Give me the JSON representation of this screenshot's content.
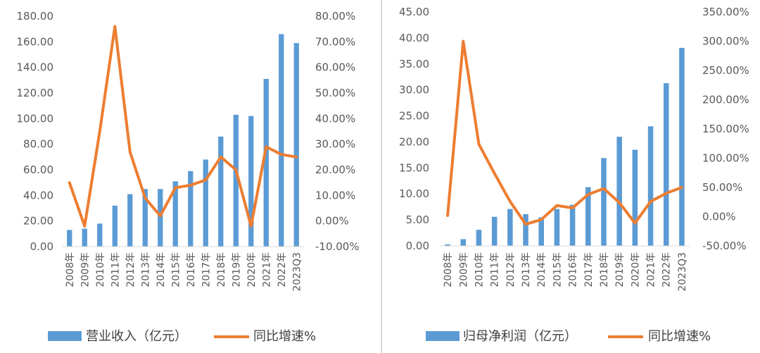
{
  "chart_data": [
    {
      "type": "bar+line",
      "categories": [
        "2008年",
        "2009年",
        "2010年",
        "2011年",
        "2012年",
        "2013年",
        "2014年",
        "2015年",
        "2016年",
        "2017年",
        "2018年",
        "2019年",
        "2020年",
        "2021年",
        "2022年",
        "2023Q3"
      ],
      "series": [
        {
          "name": "营业收入（亿元）",
          "type": "bar",
          "axis": "left",
          "values": [
            13,
            14,
            18,
            32,
            41,
            45,
            45,
            51,
            59,
            68,
            86,
            103,
            102,
            131,
            166,
            159
          ]
        },
        {
          "name": "同比增速%",
          "type": "line",
          "axis": "right",
          "values": [
            15,
            -2,
            35,
            76,
            27,
            9,
            2,
            13,
            14,
            16,
            25,
            20,
            -2,
            29,
            26,
            25
          ]
        }
      ],
      "y_left": {
        "min": 0,
        "max": 180,
        "step": 20,
        "ticks": [
          "0.00",
          "20.00",
          "40.00",
          "60.00",
          "80.00",
          "100.00",
          "120.00",
          "140.00",
          "160.00",
          "180.00"
        ]
      },
      "y_right": {
        "min": -10,
        "max": 80,
        "step": 10,
        "ticks": [
          "-10.00%",
          "0.00%",
          "10.00%",
          "20.00%",
          "30.00%",
          "40.00%",
          "50.00%",
          "60.00%",
          "70.00%",
          "80.00%"
        ]
      },
      "colors": {
        "bar": "#5B9BD5",
        "line": "#ED7D31"
      },
      "legend_position": "bottom",
      "grid": false
    },
    {
      "type": "bar+line",
      "categories": [
        "2008年",
        "2009年",
        "2010年",
        "2011年",
        "2012年",
        "2013年",
        "2014年",
        "2015年",
        "2016年",
        "2017年",
        "2018年",
        "2019年",
        "2020年",
        "2021年",
        "2022年",
        "2023Q3"
      ],
      "series": [
        {
          "name": "归母净利润（亿元）",
          "type": "bar",
          "axis": "left",
          "values": [
            0.3,
            1.3,
            3.1,
            5.6,
            7.1,
            6.1,
            5.5,
            7.1,
            7.9,
            11.3,
            16.9,
            21.0,
            18.5,
            23.0,
            31.3,
            38.1
          ]
        },
        {
          "name": "同比增速%",
          "type": "line",
          "axis": "right",
          "values": [
            2,
            300,
            124,
            74,
            26,
            -13,
            -5,
            19,
            15,
            38,
            48,
            24,
            -11,
            26,
            40,
            50
          ]
        }
      ],
      "y_left": {
        "min": 0,
        "max": 45,
        "step": 5,
        "ticks": [
          "0.00",
          "5.00",
          "10.00",
          "15.00",
          "20.00",
          "25.00",
          "30.00",
          "35.00",
          "40.00",
          "45.00"
        ]
      },
      "y_right": {
        "min": -50,
        "max": 350,
        "step": 50,
        "ticks": [
          "-50.00%",
          "0.00%",
          "50.00%",
          "100.00%",
          "150.00%",
          "200.00%",
          "250.00%",
          "300.00%",
          "350.00%"
        ]
      },
      "colors": {
        "bar": "#5B9BD5",
        "line": "#ED7D31"
      },
      "legend_position": "bottom",
      "grid": false
    }
  ]
}
